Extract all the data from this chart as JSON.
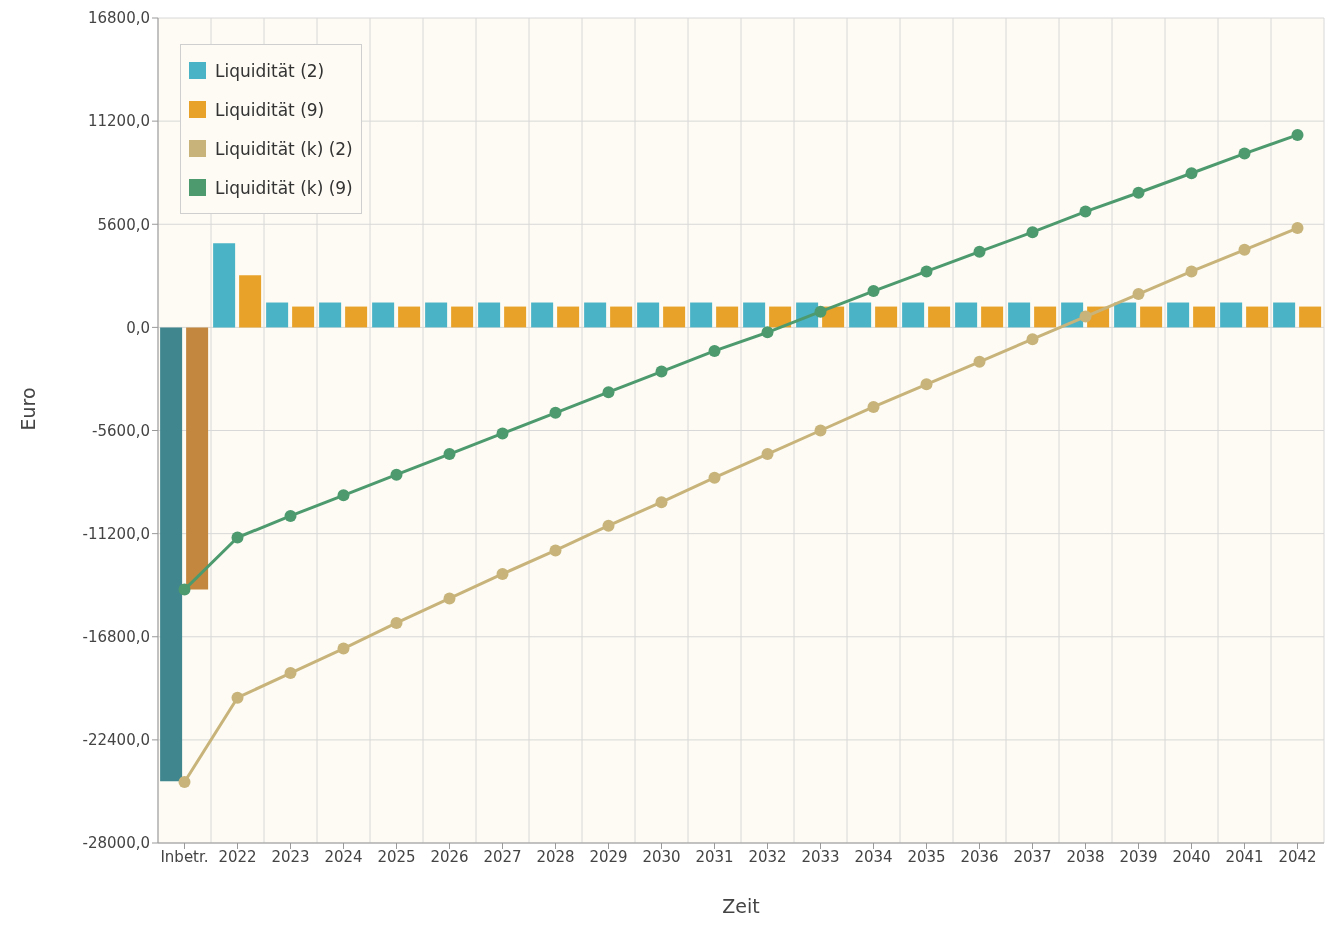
{
  "chart_data": {
    "type": "bar",
    "xlabel": "Zeit",
    "ylabel": "Euro",
    "categories": [
      "Inbetr.",
      "2022",
      "2023",
      "2024",
      "2025",
      "2026",
      "2027",
      "2028",
      "2029",
      "2030",
      "2031",
      "2032",
      "2033",
      "2034",
      "2035",
      "2036",
      "2037",
      "2038",
      "2039",
      "2040",
      "2041",
      "2042"
    ],
    "series": [
      {
        "name": "Liquidität (2)",
        "color": "#4ab3c6",
        "colors": [
          "#3f868e",
          "#4ab3c6",
          "#4ab3c6",
          "#4ab3c6",
          "#4ab3c6",
          "#4ab3c6",
          "#4ab3c6",
          "#4ab3c6",
          "#4ab3c6",
          "#4ab3c6",
          "#4ab3c6",
          "#4ab3c6",
          "#4ab3c6",
          "#4ab3c6",
          "#4ab3c6",
          "#4ab3c6",
          "#4ab3c6",
          "#4ab3c6",
          "#4ab3c6",
          "#4ab3c6",
          "#4ab3c6",
          "#4ab3c6"
        ],
        "values": [
          -24650,
          4570,
          1350,
          1350,
          1350,
          1350,
          1350,
          1350,
          1350,
          1350,
          1350,
          1350,
          1350,
          1350,
          1350,
          1350,
          1350,
          1350,
          1350,
          1350,
          1350,
          1350
        ]
      },
      {
        "name": "Liquidität (9)",
        "color": "#e8a22a",
        "colors": [
          "#c3873f",
          "#e8a22a",
          "#e8a22a",
          "#e8a22a",
          "#e8a22a",
          "#e8a22a",
          "#e8a22a",
          "#e8a22a",
          "#e8a22a",
          "#e8a22a",
          "#e8a22a",
          "#e8a22a",
          "#e8a22a",
          "#e8a22a",
          "#e8a22a",
          "#e8a22a",
          "#e8a22a",
          "#e8a22a",
          "#e8a22a",
          "#e8a22a",
          "#e8a22a",
          "#e8a22a"
        ],
        "values": [
          -14240,
          2830,
          1130,
          1130,
          1130,
          1130,
          1130,
          1130,
          1130,
          1130,
          1130,
          1130,
          1130,
          1130,
          1130,
          1130,
          1130,
          1130,
          1130,
          1130,
          1130,
          1130
        ]
      },
      {
        "name": "Liquidität (k) (2)",
        "type": "line",
        "color": "#c8b47a",
        "values": [
          -24690,
          -20110,
          -18770,
          -17440,
          -16050,
          -14720,
          -13390,
          -12110,
          -10770,
          -9490,
          -8160,
          -6880,
          -5600,
          -4320,
          -3090,
          -1870,
          -640,
          590,
          1810,
          3040,
          4210,
          5390
        ]
      },
      {
        "name": "Liquidität (k) (9)",
        "type": "line",
        "color": "#4d9a6e",
        "values": [
          -14240,
          -11410,
          -10240,
          -9120,
          -8000,
          -6880,
          -5760,
          -4640,
          -3520,
          -2400,
          -1280,
          -270,
          850,
          1970,
          3040,
          4110,
          5170,
          6290,
          7310,
          8370,
          9440,
          10450
        ]
      }
    ],
    "ylim": [
      -28000,
      16800
    ],
    "yticks": [
      {
        "value": -28000,
        "label": "-28000,0"
      },
      {
        "value": -22400,
        "label": "-22400,0"
      },
      {
        "value": -16800,
        "label": "-16800,0"
      },
      {
        "value": -11200,
        "label": "-11200,0"
      },
      {
        "value": -5600,
        "label": "-5600,0"
      },
      {
        "value": 0,
        "label": "0,0"
      },
      {
        "value": 5600,
        "label": "5600,0"
      },
      {
        "value": 11200,
        "label": "11200,0"
      },
      {
        "value": 16800,
        "label": "16800,0"
      }
    ],
    "grid": true,
    "legend": "top left",
    "marker": "circle",
    "line_style": "solid"
  }
}
